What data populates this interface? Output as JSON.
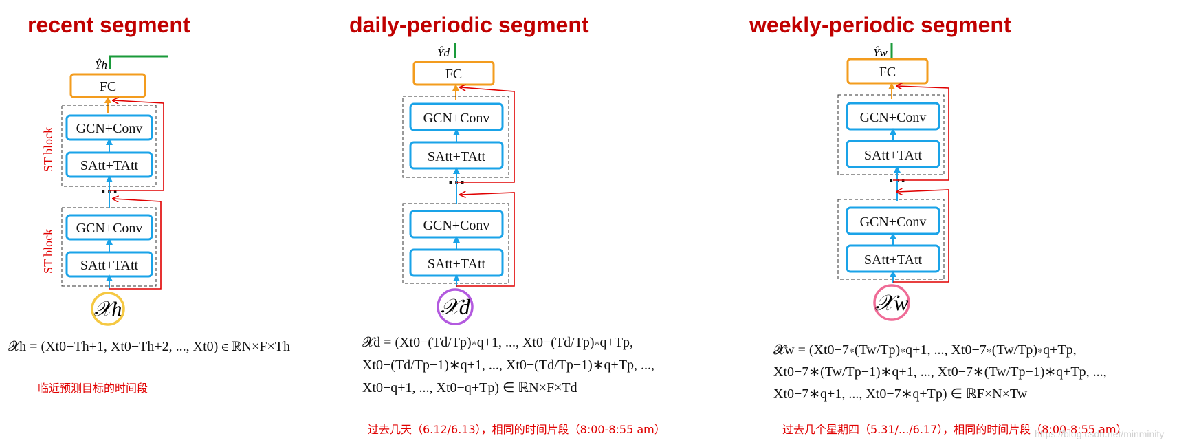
{
  "segments": {
    "recent": {
      "title": "recent segment",
      "output_label": "Ŷh",
      "input_label": "𝒳h",
      "fc_label": "FC",
      "gcn_label": "GCN+Conv",
      "satt_label": "SAtt+TAtt",
      "block_label": "ST block",
      "equation": "𝓧h = (Xt0−Th+1, Xt0−Th+2, ..., Xt0) ∈ ℝN×F×Th",
      "note": "临近预测目标的时间段"
    },
    "daily": {
      "title": "daily-periodic segment",
      "output_label": "Ŷd",
      "input_label": "𝒳d",
      "fc_label": "FC",
      "gcn_label": "GCN+Conv",
      "satt_label": "SAtt+TAtt",
      "equation_line1": "𝓧d = (Xt0−(Td/Tp)∗q+1, ..., Xt0−(Td/Tp)∗q+Tp,",
      "equation_line2": "Xt0−(Td/Tp−1)∗q+1, ..., Xt0−(Td/Tp−1)∗q+Tp, ...,",
      "equation_line3": "Xt0−q+1, ..., Xt0−q+Tp) ∈ ℝN×F×Td",
      "note": "过去几天（6.12/6.13），相同的时间片段（8:00-8:55 am）"
    },
    "weekly": {
      "title": "weekly-periodic segment",
      "output_label": "Ŷw",
      "input_label": "𝒳w",
      "fc_label": "FC",
      "gcn_label": "GCN+Conv",
      "satt_label": "SAtt+TAtt",
      "equation_line1": "𝓧w = (Xt0−7∗(Tw/Tp)∗q+1, ..., Xt0−7∗(Tw/Tp)∗q+Tp,",
      "equation_line2": "Xt0−7∗(Tw/Tp−1)∗q+1, ..., Xt0−7∗(Tw/Tp−1)∗q+Tp, ...,",
      "equation_line3": "Xt0−7∗q+1, ..., Xt0−7∗q+Tp) ∈ ℝF×N×Tw",
      "note": "过去几个星期四（5.31/.../6.17），相同的时间片段（8:00-8:55 am）"
    }
  },
  "colors": {
    "title": "#c00000",
    "note": "#e00000",
    "fc_border": "#f39c1e",
    "block_border": "#1aa3e8",
    "arrow_blue": "#1aa3e8",
    "arrow_orange": "#f39c1e",
    "skip_red": "#e00000",
    "output_green": "#1a9a3a",
    "circle_recent": "#f5c842",
    "circle_daily": "#b35adf",
    "circle_weekly": "#ef6b96"
  },
  "watermark": "https://blog.csdn.net/minminity"
}
